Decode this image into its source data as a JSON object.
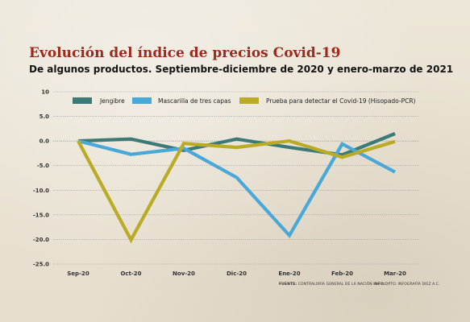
{
  "header": {
    "title": "Evolución del índice de precios Covid-19",
    "subtitle": "De algunos productos. Septiembre-diciembre de 2020 y enero-marzo de 2021"
  },
  "colors": {
    "title": "#9b2b1f",
    "background": "#e9e2d3",
    "grid": "#9a9a9a"
  },
  "chart_data": {
    "type": "line",
    "categories": [
      "Sep-20",
      "Oct-20",
      "Nov-20",
      "Dic-20",
      "Ene-20",
      "Feb-20",
      "Mar-20"
    ],
    "ylim": [
      -25,
      10
    ],
    "yticks": [
      10,
      5,
      0,
      -5,
      -10,
      -15,
      -20,
      -25
    ],
    "ytick_labels": [
      "10",
      "5.0",
      "0.0",
      "-5.0",
      "-10.0",
      "-15.0",
      "-20.0",
      "-25.0"
    ],
    "grid": true,
    "legend_position": "top",
    "series": [
      {
        "name": "Jengibre",
        "color": "#3c7a78",
        "values": [
          0,
          0.4,
          -1.9,
          0.4,
          -1.3,
          -2.8,
          1.5
        ]
      },
      {
        "name": "Mascarilla de tres capas",
        "color": "#4aa8d8",
        "values": [
          0,
          -2.7,
          -1.5,
          -7.4,
          -19.2,
          -0.6,
          -6.3
        ]
      },
      {
        "name": "Prueba para detectar el Covid-19 (Hisopado-PCR)",
        "color": "#b9ab25",
        "values": [
          0,
          -20.1,
          -0.5,
          -1.3,
          0.0,
          -3.3,
          -0.1
        ]
      }
    ]
  },
  "source": {
    "label": "FUENTE:",
    "entity": "CONTRALORÍA GENERAL DE LA NACIÓN",
    "info_label": "INFO:",
    "info_text": "DPTO. INFOGRAFÍA DIEZ A.C."
  }
}
